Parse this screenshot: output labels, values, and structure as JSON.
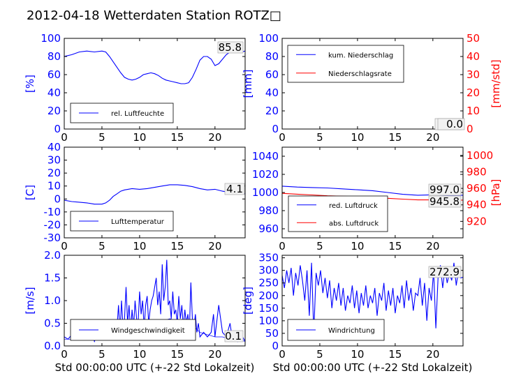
{
  "title": "2012-04-18 Wetterdaten Station ROTZ□",
  "colors": {
    "primary": "#0000ff",
    "secondary": "#ff0000",
    "axis": "#000000",
    "frame": "#000000"
  },
  "chart_data": [
    {
      "id": "humidity",
      "type": "line",
      "ylabel": "[%]",
      "ylim": [
        0,
        100
      ],
      "yticks": [
        0,
        20,
        40,
        60,
        80,
        100
      ],
      "xlim": [
        0,
        24
      ],
      "xticks": [
        0,
        5,
        10,
        15,
        20
      ],
      "readout": "85.8",
      "series": [
        {
          "name": "rel. Luftfeuchte",
          "color": "#0000ff",
          "x": [
            0,
            1,
            2,
            3,
            4,
            5,
            5.5,
            6,
            7,
            7.5,
            8,
            8.5,
            9,
            9.5,
            10,
            10.5,
            11,
            11.5,
            12,
            12.5,
            13,
            13.5,
            14,
            14.5,
            15,
            15.5,
            16,
            16.5,
            17,
            17.5,
            18,
            18.5,
            19,
            19.5,
            20,
            20.5,
            21,
            21.5,
            22,
            22.5,
            23,
            23.5,
            24
          ],
          "y": [
            80,
            82,
            85,
            86,
            85,
            86,
            85,
            80,
            68,
            62,
            57,
            55,
            54,
            55,
            57,
            60,
            61,
            62,
            61,
            59,
            56,
            54,
            53,
            52,
            51,
            50,
            50,
            51,
            57,
            66,
            76,
            80,
            80,
            77,
            70,
            72,
            77,
            82,
            85,
            86,
            86,
            85,
            86
          ]
        }
      ]
    },
    {
      "id": "precipitation",
      "type": "line",
      "ylabel": "[mm]",
      "ylim": [
        0,
        100
      ],
      "yticks": [
        0,
        20,
        40,
        60,
        80,
        100
      ],
      "y2label": "[mm/std]",
      "y2lim": [
        0,
        50
      ],
      "y2ticks": [
        0,
        10,
        20,
        30,
        40,
        50
      ],
      "xlim": [
        0,
        24
      ],
      "xticks": [
        0,
        5,
        10,
        15,
        20
      ],
      "readout": "0.0",
      "readout2": "0.0",
      "series": [
        {
          "name": "kum. Niederschlag",
          "color": "#0000ff",
          "axis": "left",
          "x": [
            0,
            24
          ],
          "y": [
            0,
            0
          ]
        },
        {
          "name": "Niederschlagsrate",
          "color": "#ff0000",
          "axis": "right",
          "x": [
            0,
            24
          ],
          "y": [
            0,
            0
          ]
        }
      ]
    },
    {
      "id": "temperature",
      "type": "line",
      "ylabel": "[C]",
      "ylim": [
        -30,
        40
      ],
      "yticks": [
        -30,
        -20,
        -10,
        0,
        10,
        20,
        30,
        40
      ],
      "xlim": [
        0,
        24
      ],
      "xticks": [
        0,
        5,
        10,
        15,
        20
      ],
      "readout": "4.1",
      "series": [
        {
          "name": "Lufttemperatur",
          "color": "#0000ff",
          "x": [
            0,
            1,
            2,
            3,
            4,
            5,
            5.5,
            6,
            6.5,
            7,
            7.5,
            8,
            9,
            10,
            11,
            12,
            13,
            14,
            15,
            16,
            17,
            18,
            19,
            20,
            21,
            22,
            23,
            24
          ],
          "y": [
            -1,
            -2,
            -2.5,
            -3,
            -4,
            -4,
            -3,
            -1,
            2,
            4,
            6,
            7,
            8,
            7.5,
            8,
            9,
            10,
            11,
            11,
            10.5,
            9.5,
            8,
            7,
            7.5,
            6,
            5,
            4.5,
            4.1
          ]
        }
      ]
    },
    {
      "id": "pressure",
      "type": "line",
      "ylabel": "",
      "ylim": [
        950,
        1050
      ],
      "yticks": [
        960,
        980,
        1000,
        1020,
        1040
      ],
      "y2label": "[hPa]",
      "y2lim": [
        900,
        1010
      ],
      "y2ticks": [
        920,
        940,
        960,
        980,
        1000
      ],
      "xlim": [
        0,
        24
      ],
      "xticks": [
        0,
        5,
        10,
        15,
        20
      ],
      "readout": "997.0",
      "readout2": "945.8",
      "series": [
        {
          "name": "red. Luftdruck",
          "color": "#0000ff",
          "axis": "left",
          "x": [
            0,
            2,
            4,
            6,
            8,
            10,
            12,
            14,
            16,
            18,
            20,
            22,
            24
          ],
          "y": [
            1007,
            1006,
            1005.5,
            1005,
            1004,
            1003,
            1002,
            1000,
            998,
            997,
            997.5,
            997,
            997
          ]
        },
        {
          "name": "abs. Luftdruck",
          "color": "#ff0000",
          "axis": "right",
          "x": [
            0,
            2,
            4,
            6,
            8,
            10,
            12,
            14,
            16,
            18,
            20,
            22,
            24
          ],
          "y": [
            954,
            953,
            952,
            951,
            950.5,
            950,
            949,
            948,
            947,
            946,
            946,
            945.8,
            945.8
          ]
        }
      ]
    },
    {
      "id": "windspeed",
      "type": "line",
      "ylabel": "[m/s]",
      "ylim": [
        0,
        2.0
      ],
      "yticks": [
        0.0,
        0.5,
        1.0,
        1.5,
        2.0
      ],
      "xlim": [
        0,
        24
      ],
      "xticks": [
        0,
        5,
        10,
        15,
        20
      ],
      "xlabel": "Std 00:00:00 UTC (+-22 Std Lokalzeit)",
      "readout": "0.1",
      "series": [
        {
          "name": "Windgeschwindigkeit",
          "color": "#0000ff",
          "x": [
            0,
            0.5,
            1,
            1.5,
            2,
            2.5,
            3,
            3.5,
            4,
            4.5,
            5,
            5.5,
            6,
            6.5,
            7,
            7.2,
            7.4,
            7.6,
            7.8,
            8,
            8.2,
            8.4,
            8.6,
            8.8,
            9,
            9.2,
            9.4,
            9.6,
            9.8,
            10,
            10.2,
            10.4,
            10.6,
            10.8,
            11,
            11.2,
            11.4,
            11.6,
            11.8,
            12,
            12.2,
            12.4,
            12.6,
            12.8,
            13,
            13.2,
            13.4,
            13.6,
            13.8,
            14,
            14.2,
            14.4,
            14.6,
            14.8,
            15,
            15.2,
            15.4,
            15.6,
            15.8,
            16,
            16.2,
            16.4,
            16.6,
            16.8,
            17,
            17.2,
            17.4,
            17.6,
            17.8,
            18,
            18.5,
            19,
            19.5,
            19.8,
            20,
            20.5,
            21,
            21.5,
            22,
            22.3,
            22.6,
            23,
            23.5,
            24
          ],
          "y": [
            0.2,
            0.15,
            0.25,
            0.2,
            0.3,
            0.15,
            0.2,
            0.35,
            0.1,
            0.3,
            0.2,
            0.15,
            0.3,
            0.25,
            0.4,
            0.9,
            0.3,
            1.0,
            0.4,
            0.6,
            1.3,
            0.5,
            0.9,
            0.3,
            0.8,
            0.4,
            1.0,
            0.6,
            0.5,
            1.2,
            0.7,
            1.0,
            0.4,
            0.9,
            1.1,
            0.5,
            0.8,
            1.0,
            1.1,
            1.3,
            1.5,
            0.9,
            1.2,
            0.7,
            1.8,
            1.0,
            1.3,
            1.9,
            0.9,
            1.0,
            0.6,
            1.2,
            0.7,
            0.8,
            0.5,
            1.1,
            0.6,
            0.9,
            0.4,
            0.8,
            0.5,
            0.7,
            0.3,
            1.4,
            0.6,
            0.4,
            0.7,
            0.3,
            0.5,
            0.2,
            0.3,
            0.2,
            0.3,
            0.7,
            0.2,
            0.9,
            0.3,
            0.2,
            0.5,
            0.15,
            0.3,
            0.1,
            0.25,
            0.1
          ]
        },
        {
          "name": "",
          "color": "#0000ff",
          "thin": true,
          "x": [
            0,
            1,
            2,
            3,
            4,
            5,
            6,
            7,
            8,
            9,
            10,
            11,
            12,
            13,
            14,
            15,
            16,
            17,
            18,
            19,
            20,
            21,
            22,
            23,
            24
          ],
          "y": [
            0.15,
            0.15,
            0.2,
            0.15,
            0.2,
            0.15,
            0.2,
            0.25,
            0.35,
            0.4,
            0.45,
            0.45,
            0.5,
            0.55,
            0.6,
            0.55,
            0.5,
            0.45,
            0.3,
            0.25,
            0.2,
            0.2,
            0.15,
            0.15,
            0.1
          ]
        }
      ]
    },
    {
      "id": "winddirection",
      "type": "line",
      "ylabel": "[deg]",
      "ylim": [
        0,
        360
      ],
      "yticks": [
        0,
        50,
        100,
        150,
        200,
        250,
        300,
        350
      ],
      "xlim": [
        0,
        24
      ],
      "xticks": [
        0,
        5,
        10,
        15,
        20
      ],
      "xlabel": "Std 00:00:00 UTC (+-22 Std Lokalzeit)",
      "readout": "272.9",
      "series": [
        {
          "name": "Windrichtung",
          "color": "#0000ff",
          "x": [
            0,
            0.3,
            0.6,
            0.9,
            1.2,
            1.5,
            1.8,
            2.1,
            2.4,
            2.7,
            3,
            3.3,
            3.6,
            3.9,
            4.2,
            4.5,
            4.8,
            5.1,
            5.4,
            5.7,
            6,
            6.3,
            6.6,
            6.9,
            7.2,
            7.5,
            7.8,
            8.1,
            8.4,
            8.7,
            9,
            9.3,
            9.6,
            9.9,
            10.2,
            10.5,
            10.8,
            11.1,
            11.4,
            11.7,
            12,
            12.3,
            12.6,
            12.9,
            13.2,
            13.5,
            13.8,
            14.1,
            14.4,
            14.7,
            15,
            15.3,
            15.6,
            15.9,
            16.2,
            16.5,
            16.8,
            17.1,
            17.4,
            17.7,
            18,
            18.3,
            18.6,
            18.9,
            19.2,
            19.5,
            19.8,
            20.1,
            20.4,
            20.7,
            21,
            21.3,
            21.6,
            21.9,
            22.2,
            22.5,
            22.8,
            23.1,
            23.4,
            23.7,
            24
          ],
          "y": [
            280,
            230,
            300,
            250,
            310,
            200,
            290,
            240,
            320,
            260,
            180,
            300,
            120,
            330,
            50,
            290,
            240,
            300,
            210,
            270,
            190,
            260,
            150,
            230,
            180,
            250,
            160,
            230,
            140,
            200,
            170,
            240,
            150,
            220,
            130,
            210,
            160,
            240,
            150,
            200,
            170,
            230,
            120,
            210,
            180,
            250,
            140,
            220,
            160,
            230,
            130,
            200,
            170,
            240,
            150,
            260,
            180,
            230,
            140,
            210,
            200,
            270,
            160,
            250,
            100,
            230,
            180,
            300,
            70,
            280,
            320,
            230,
            310,
            250,
            290,
            260,
            330,
            240,
            300,
            270,
            273
          ]
        }
      ]
    }
  ]
}
